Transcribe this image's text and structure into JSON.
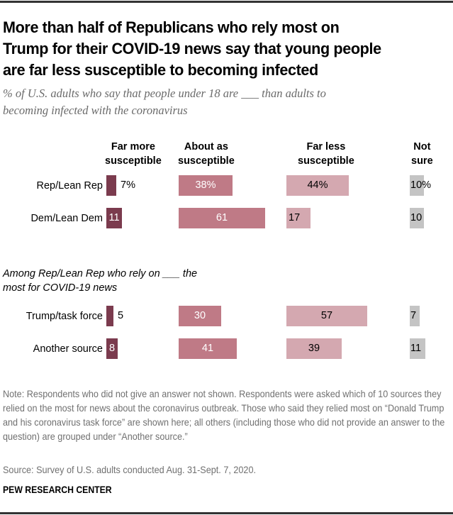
{
  "chart_data": {
    "type": "bar",
    "orientation": "horizontal",
    "stacking": "separate-columns",
    "title": "More than half of Republicans who rely most on Trump for their COVID-19 news say that young people are far less susceptible to becoming infected",
    "title_lines": [
      "More than half of Republicans who rely most on",
      "Trump for their COVID-19 news say that young people",
      "are far less susceptible to becoming infected"
    ],
    "subtitle_lines": [
      "% of U.S. adults who say that people under 18 are ___ than adults to",
      "becoming infected with the coronavirus"
    ],
    "series": [
      {
        "key": "far_more",
        "name": "Far more susceptible",
        "header_lines": [
          "Far more",
          "susceptible"
        ],
        "color": "#7b3b4e",
        "label_color_inside": "#ffffff",
        "values": [
          7,
          11,
          5,
          8
        ]
      },
      {
        "key": "about_as",
        "name": "About as susceptible",
        "header_lines": [
          "About as",
          "susceptible"
        ],
        "color": "#bf7a86",
        "label_color_inside": "#ffffff",
        "values": [
          38,
          61,
          30,
          41
        ]
      },
      {
        "key": "far_less",
        "name": "Far less susceptible",
        "header_lines": [
          "Far less",
          "susceptible"
        ],
        "color": "#d4a8b0",
        "label_color_inside": "#000000",
        "values": [
          44,
          17,
          57,
          39
        ]
      },
      {
        "key": "not_sure",
        "name": "Not sure",
        "header_lines": [
          "Not",
          "sure"
        ],
        "color": "#c4c4c4",
        "label_color_inside": "#000000",
        "values": [
          10,
          10,
          7,
          11
        ]
      }
    ],
    "categories": [
      "Rep/Lean Rep",
      "Dem/Lean Dem",
      "Trump/task force",
      "Another source"
    ],
    "value_labels": [
      [
        "7%",
        "38%",
        "44%",
        "10%"
      ],
      [
        "11",
        "61",
        "17",
        "10"
      ],
      [
        "5",
        "30",
        "57",
        "7"
      ],
      [
        "8",
        "41",
        "39",
        "11"
      ]
    ],
    "section_heading_lines": [
      "Among Rep/Lean Rep who rely on ___ the",
      "most for COVID-19 news"
    ],
    "unit": "%",
    "xlim": [
      0,
      100
    ]
  },
  "footer": {
    "note": "Note: Respondents who did not give an answer not shown. Respondents were asked which of 10 sources they relied on the most for news about the coronavirus outbreak. Those who said they relied most on “Donald Trump and his coronavirus task force” are shown here; all others (including those who did not provide an answer to the question) are grouped under “Another source.”",
    "source": "Source: Survey of U.S. adults conducted Aug. 31-Sept. 7, 2020.",
    "brand": "PEW RESEARCH CENTER"
  }
}
